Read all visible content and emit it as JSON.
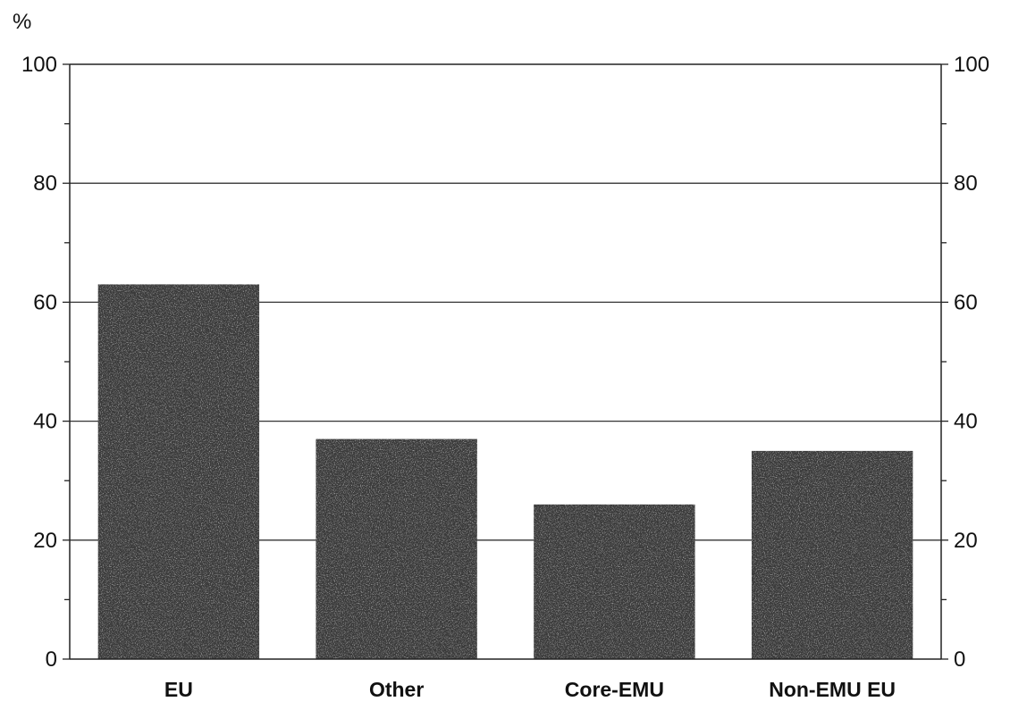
{
  "chart_data": {
    "type": "bar",
    "title": "",
    "xlabel": "",
    "ylabel": "%",
    "unit": "%",
    "categories": [
      "EU",
      "Other",
      "Core-EMU",
      "Non-EMU EU"
    ],
    "values": [
      63,
      37,
      26,
      35
    ],
    "ylim": [
      0,
      100
    ],
    "yticks": [
      0,
      20,
      40,
      60,
      80,
      100
    ],
    "ytick_labels": [
      "0",
      "20",
      "40",
      "60",
      "80",
      "100"
    ],
    "grid": true,
    "legend": "none",
    "bar_color": "#3a3a3a",
    "grid_color": "#333333",
    "axis_color": "#222222"
  }
}
